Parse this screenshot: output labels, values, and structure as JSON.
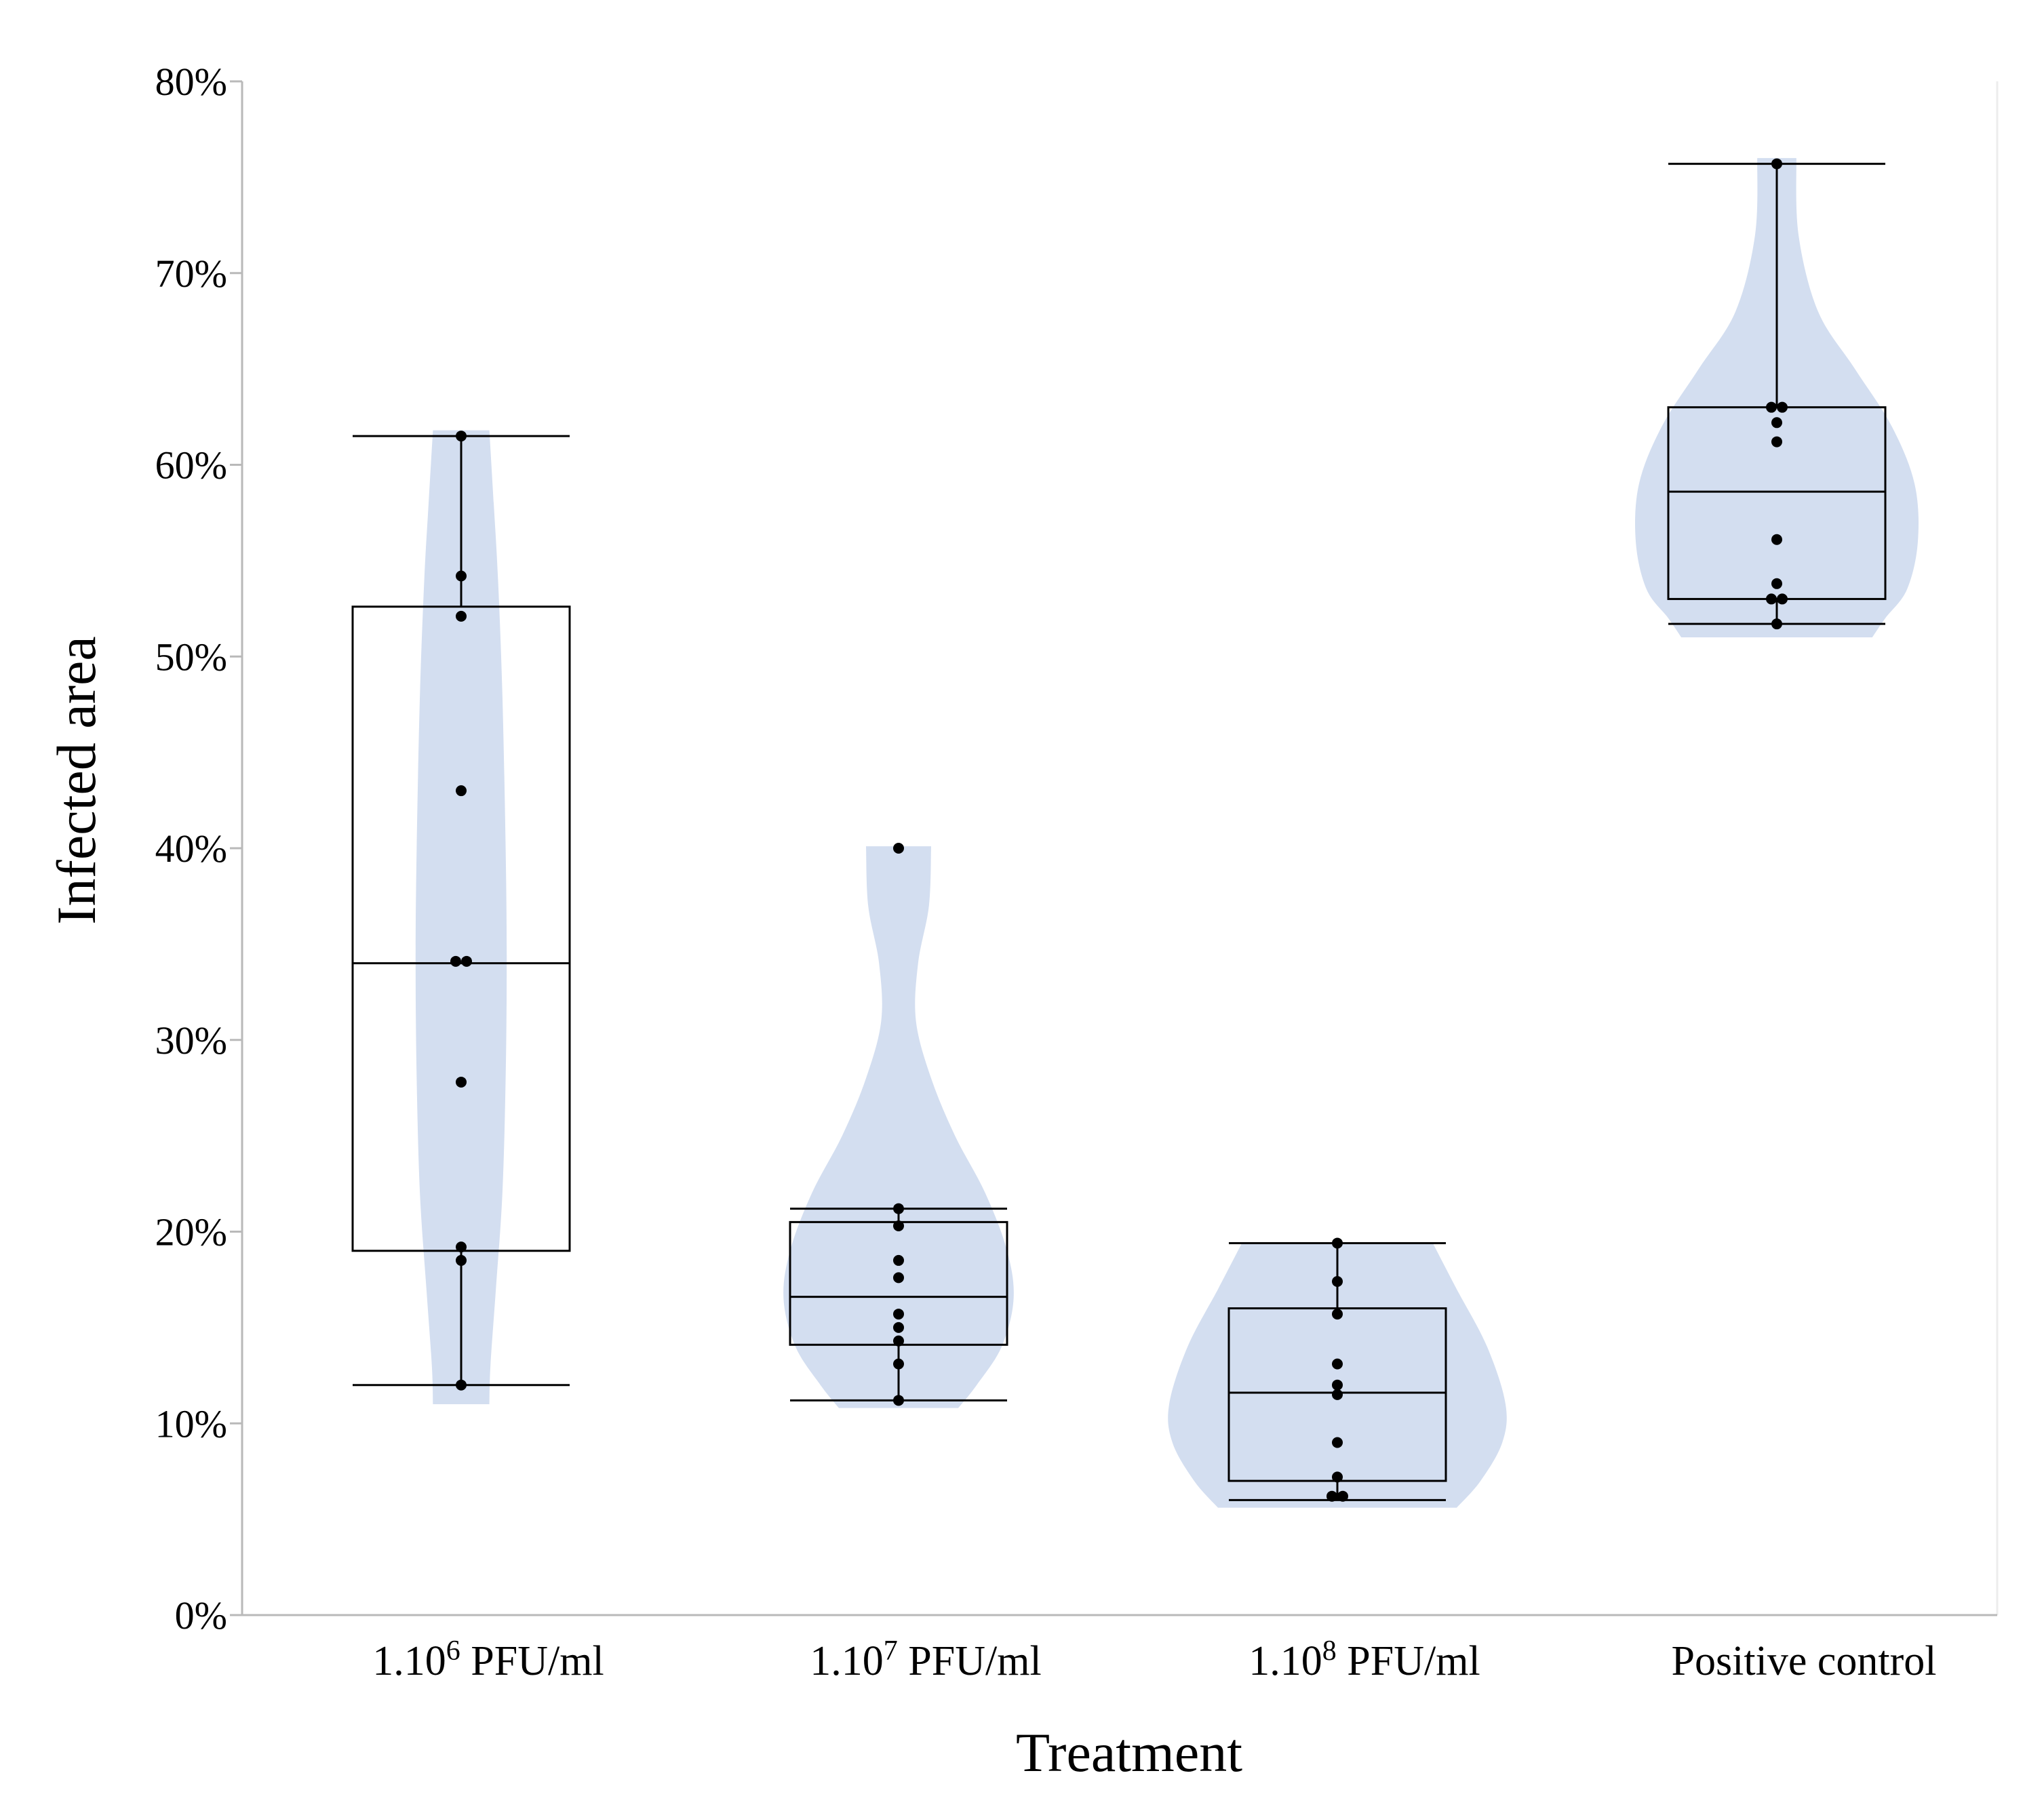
{
  "chart_data": {
    "type": "violin-box",
    "title": "",
    "xlabel": "Treatment",
    "ylabel": "Infected area",
    "ylim": [
      0,
      80
    ],
    "yticks": [
      0,
      10,
      20,
      30,
      40,
      50,
      60,
      70,
      80
    ],
    "ytick_labels": [
      "0%",
      "10%",
      "20%",
      "30%",
      "40%",
      "50%",
      "60%",
      "70%",
      "80%"
    ],
    "grid": false,
    "violin_color": "#d3def0",
    "groups": [
      {
        "label_prefix": "1.10",
        "label_sup": "6",
        "label_suffix": " PFU/ml",
        "min": 12.0,
        "q1": 19.0,
        "median": 34.0,
        "q3": 52.6,
        "max": 61.5,
        "points": [
          61.5,
          54.2,
          52.1,
          43.0,
          34.1,
          34.1,
          27.8,
          19.2,
          18.5,
          12.0
        ],
        "violin": {
          "top": 61.8,
          "bottom": 11.0,
          "profile": [
            [
              61.8,
              0.26
            ],
            [
              58,
              0.3
            ],
            [
              54,
              0.34
            ],
            [
              48,
              0.38
            ],
            [
              40,
              0.41
            ],
            [
              34,
              0.42
            ],
            [
              28,
              0.41
            ],
            [
              22,
              0.38
            ],
            [
              17,
              0.32
            ],
            [
              13,
              0.27
            ],
            [
              11,
              0.26
            ]
          ]
        }
      },
      {
        "label_prefix": "1.10",
        "label_sup": "7",
        "label_suffix": " PFU/ml",
        "min": 11.2,
        "q1": 14.1,
        "median": 16.6,
        "q3": 20.5,
        "max": 21.2,
        "points": [
          40.0,
          21.2,
          20.3,
          18.5,
          17.6,
          15.7,
          15.0,
          14.3,
          13.1,
          11.2
        ],
        "violin": {
          "top": 40.1,
          "bottom": 10.8,
          "profile": [
            [
              40.1,
              0.3
            ],
            [
              37,
              0.28
            ],
            [
              34,
              0.18
            ],
            [
              31,
              0.16
            ],
            [
              28,
              0.3
            ],
            [
              25,
              0.52
            ],
            [
              22,
              0.8
            ],
            [
              19,
              1.0
            ],
            [
              16.5,
              1.06
            ],
            [
              14,
              0.95
            ],
            [
              12,
              0.72
            ],
            [
              10.8,
              0.55
            ]
          ]
        }
      },
      {
        "label_prefix": "1.10",
        "label_sup": "8",
        "label_suffix": " PFU/ml",
        "min": 6.0,
        "q1": 7.0,
        "median": 11.6,
        "q3": 16.0,
        "max": 19.4,
        "points": [
          19.4,
          17.4,
          15.7,
          13.1,
          12.0,
          11.5,
          9.0,
          7.2,
          6.2,
          6.2
        ],
        "violin": {
          "top": 19.4,
          "bottom": 5.6,
          "profile": [
            [
              19.4,
              0.88
            ],
            [
              17,
              1.1
            ],
            [
              14,
              1.38
            ],
            [
              11,
              1.55
            ],
            [
              9,
              1.52
            ],
            [
              7,
              1.32
            ],
            [
              5.6,
              1.1
            ]
          ]
        }
      },
      {
        "label_prefix": "Positive control",
        "label_sup": "",
        "label_suffix": "",
        "min": 51.7,
        "q1": 53.0,
        "median": 58.6,
        "q3": 63.0,
        "max": 75.7,
        "points": [
          75.7,
          63.0,
          63.0,
          62.2,
          61.2,
          56.1,
          53.8,
          53.0,
          53.0,
          51.7
        ],
        "violin": {
          "top": 76.0,
          "bottom": 51.0,
          "profile": [
            [
              76,
              0.18
            ],
            [
              72,
              0.2
            ],
            [
              68,
              0.38
            ],
            [
              65,
              0.72
            ],
            [
              62,
              1.06
            ],
            [
              59,
              1.27
            ],
            [
              56,
              1.3
            ],
            [
              53.5,
              1.2
            ],
            [
              52,
              1.0
            ],
            [
              51,
              0.88
            ]
          ]
        }
      }
    ]
  }
}
